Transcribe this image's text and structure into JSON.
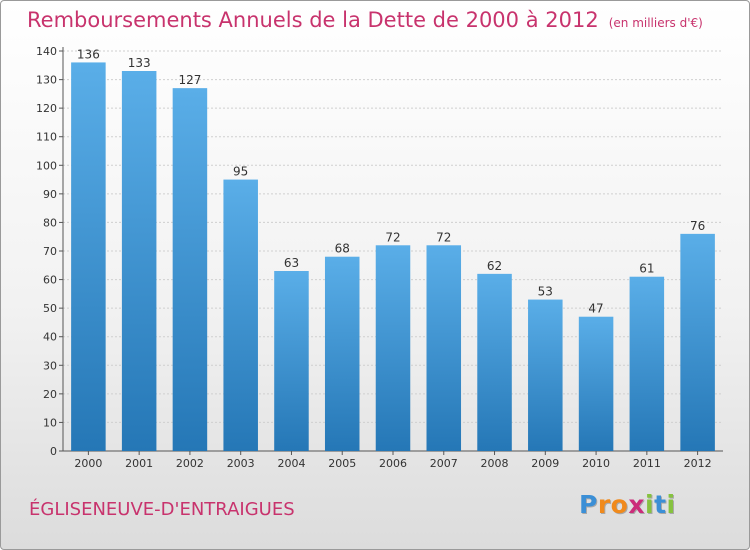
{
  "chart_data": {
    "type": "bar",
    "title": "Remboursements Annuels de la Dette de 2000 à 2012",
    "subtitle": "(en milliers d'€)",
    "categories": [
      "2000",
      "2001",
      "2002",
      "2003",
      "2004",
      "2005",
      "2006",
      "2007",
      "2008",
      "2009",
      "2010",
      "2011",
      "2012"
    ],
    "values": [
      136,
      133,
      127,
      95,
      63,
      68,
      72,
      72,
      62,
      53,
      47,
      61,
      76
    ],
    "ylim": [
      0,
      140
    ],
    "yticks": [
      0,
      10,
      20,
      30,
      40,
      50,
      60,
      70,
      80,
      90,
      100,
      110,
      120,
      130,
      140
    ],
    "xlabel": "",
    "ylabel": "",
    "grid": true,
    "data_labels": true,
    "bar_color_top": "#5aaee8",
    "bar_color_bottom": "#2577b6"
  },
  "location_name": "ÉGLISENEUVE-D'ENTRAIGUES",
  "brand": {
    "name": "Proxiti",
    "letters": [
      {
        "char": "P",
        "color": "#3b8fd6"
      },
      {
        "char": "r",
        "color": "#f08a1c"
      },
      {
        "char": "o",
        "color": "#f08a1c"
      },
      {
        "char": "x",
        "color": "#cc2c7a"
      },
      {
        "char": "i",
        "color": "#86c23f"
      },
      {
        "char": "t",
        "color": "#3b8fd6"
      },
      {
        "char": "i",
        "color": "#86c23f"
      }
    ]
  },
  "colors": {
    "title": "#c8336d",
    "axis_text": "#333333"
  }
}
